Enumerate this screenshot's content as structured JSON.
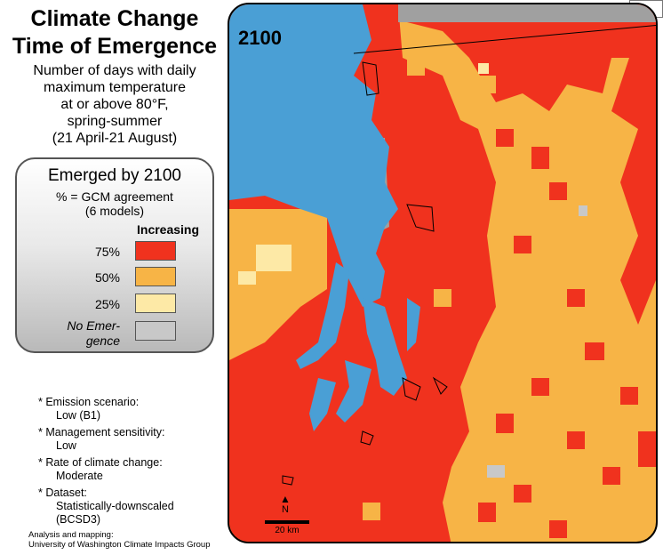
{
  "title_lines": [
    "Climate Change",
    "Time of Emergence"
  ],
  "subtitle_lines": [
    "Number of days with daily",
    "maximum temperature",
    "at or above 80°F,",
    "spring-summer",
    "(21 April-21 August)"
  ],
  "legend": {
    "title": "Emerged by 2100",
    "subtitle_lines": [
      "% = GCM agreement",
      "(6 models)"
    ],
    "direction_label": "Increasing",
    "items": [
      {
        "label": "75%",
        "color": "#f0321e"
      },
      {
        "label": "50%",
        "color": "#f7b446"
      },
      {
        "label": "25%",
        "color": "#fde9a6"
      }
    ],
    "no_emergence": {
      "label_lines": [
        "No Emer-",
        "gence"
      ],
      "color": "#c8c8c8"
    }
  },
  "notes": [
    {
      "heading": "* Emission scenario:",
      "value": "Low (B1)"
    },
    {
      "heading": "* Management sensitivity:",
      "value": "Low"
    },
    {
      "heading": "* Rate of climate change:",
      "value": "Moderate"
    },
    {
      "heading": "* Dataset:",
      "value_lines": [
        "Statistically-downscaled",
        "(BCSD3)"
      ]
    }
  ],
  "credit_lines": [
    "Analysis and mapping:",
    "University of Washington Climate Impacts Group"
  ],
  "map": {
    "year_label": "2100",
    "north_label": "N",
    "scale_label": "20 km",
    "colors": {
      "water": "#4a9fd5",
      "red": "#f0321e",
      "orange": "#f7b446",
      "pale": "#fde9a6",
      "gray": "#a0a0a0"
    }
  }
}
